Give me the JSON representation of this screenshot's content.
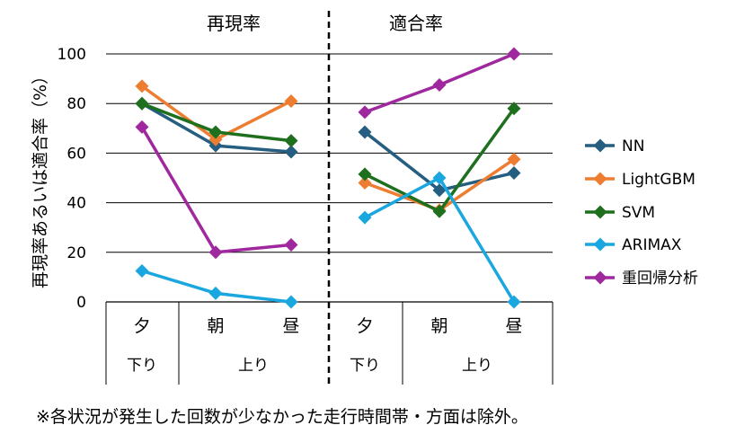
{
  "chart_data": {
    "type": "line",
    "section_titles": [
      "再現率",
      "適合率"
    ],
    "ylabel": "再現率あるいは適合率（%）",
    "ylim": [
      0,
      100
    ],
    "yticks": [
      "0",
      "20",
      "40",
      "60",
      "80",
      "100"
    ],
    "categories": [
      "夕",
      "朝",
      "昼",
      "夕",
      "朝",
      "昼"
    ],
    "direction_labels": [
      "下り",
      "上り",
      "下り",
      "上り"
    ],
    "grid": true,
    "legend_position": "right",
    "series": [
      {
        "name": "NN",
        "color": "#255E80",
        "values": [
          [
            80,
            63,
            60.5
          ],
          [
            68.5,
            45,
            52
          ]
        ]
      },
      {
        "name": "LightGBM",
        "color": "#ED7D31",
        "values": [
          [
            87,
            65.5,
            81
          ],
          [
            48,
            37,
            57.5
          ]
        ]
      },
      {
        "name": "SVM",
        "color": "#1E6F1E",
        "values": [
          [
            80,
            68.5,
            65
          ],
          [
            51.5,
            36.5,
            78
          ]
        ]
      },
      {
        "name": "ARIMAX",
        "color": "#1AA7E0",
        "values": [
          [
            12.5,
            3.5,
            0
          ],
          [
            34,
            50,
            0
          ]
        ]
      },
      {
        "name": "重回帰分析",
        "color": "#A0289E",
        "values": [
          [
            70.5,
            20,
            23
          ],
          [
            76.5,
            87.5,
            100
          ]
        ]
      }
    ]
  },
  "footnote": "※各状況が発生した回数が少なかった走行時間帯・方面は除外。"
}
